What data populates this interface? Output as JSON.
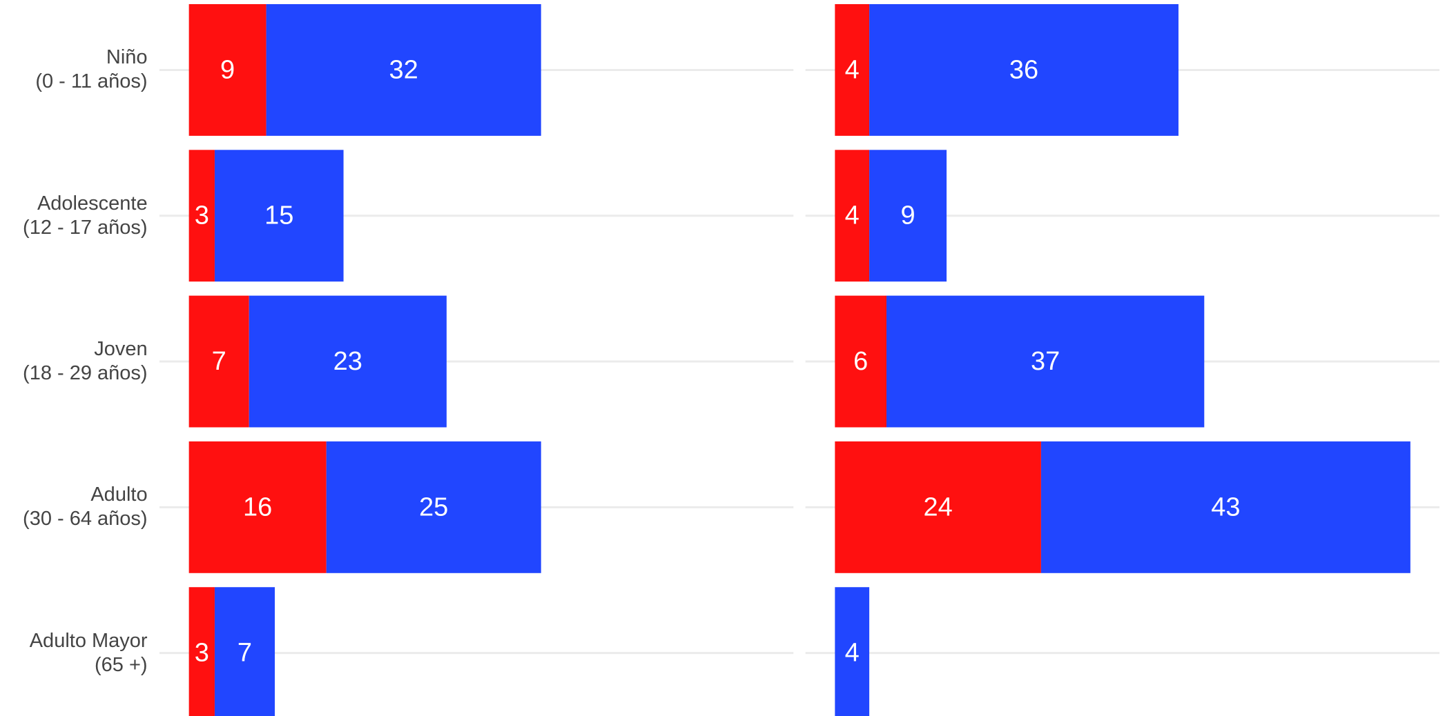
{
  "chart_data": [
    {
      "type": "bar",
      "orientation": "horizontal",
      "stacked": true,
      "categories": [
        "Niño\n(0 - 11 años)",
        "Adolescente\n(12 - 17 años)",
        "Joven\n(18 - 29 años)",
        "Adulto\n(30 - 64 años)",
        "Adulto Mayor\n(65 +)"
      ],
      "xlim": [
        0,
        70
      ],
      "grid": true,
      "series": [
        {
          "color": "#ff1010",
          "values": [
            9,
            3,
            7,
            16,
            3
          ]
        },
        {
          "color": "#2146ff",
          "values": [
            32,
            15,
            23,
            25,
            7
          ]
        }
      ]
    },
    {
      "type": "bar",
      "orientation": "horizontal",
      "stacked": true,
      "xlim": [
        0,
        70
      ],
      "grid": true,
      "series": [
        {
          "color": "#ff1010",
          "values": [
            4,
            4,
            6,
            24,
            0
          ]
        },
        {
          "color": "#2146ff",
          "values": [
            36,
            9,
            37,
            43,
            4
          ]
        }
      ]
    }
  ]
}
